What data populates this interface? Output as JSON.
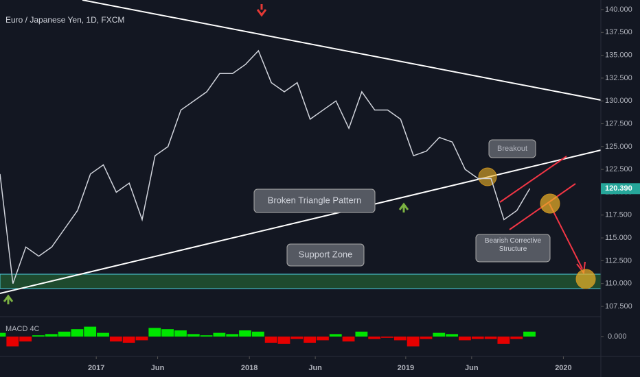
{
  "chart_data": {
    "type": "line",
    "title": "Euro / Japanese Yen, 1D, FXCM",
    "series": [
      {
        "name": "EURJPY",
        "color": "#d1d4dc",
        "values": [
          122,
          110,
          114,
          113,
          114,
          116,
          118,
          122,
          123,
          120,
          121,
          117,
          124,
          125,
          129,
          130,
          131,
          133,
          133,
          134,
          135.5,
          132,
          131,
          132,
          128,
          129,
          130,
          127,
          131,
          129,
          129,
          128,
          124,
          124.5,
          126,
          125.5,
          122.5,
          121.5,
          121.5,
          117,
          118,
          120.4
        ]
      }
    ],
    "xlim": [
      0,
      46.5
    ],
    "xticks": [
      {
        "value": 7.45,
        "label": "2017"
      },
      {
        "value": 12.2,
        "label": "Jun"
      },
      {
        "value": 19.3,
        "label": "2018"
      },
      {
        "value": 24.4,
        "label": "Jun"
      },
      {
        "value": 31.4,
        "label": "2019"
      },
      {
        "value": 36.5,
        "label": "Jun"
      },
      {
        "value": 43.6,
        "label": "2020"
      }
    ],
    "ylim": [
      107.5,
      140
    ],
    "yticks": [
      {
        "value": 107.5,
        "label": "107.500"
      },
      {
        "value": 110,
        "label": "110.000"
      },
      {
        "value": 112.5,
        "label": "112.500"
      },
      {
        "value": 115,
        "label": "115.000"
      },
      {
        "value": 117.5,
        "label": "117.500"
      },
      {
        "value": 120,
        "label": "120.000"
      },
      {
        "value": 122.5,
        "label": "122.500"
      },
      {
        "value": 125,
        "label": "125.000"
      },
      {
        "value": 127.5,
        "label": "127.500"
      },
      {
        "value": 130,
        "label": "130.000"
      },
      {
        "value": 132.5,
        "label": "132.500"
      },
      {
        "value": 135,
        "label": "135.000"
      },
      {
        "value": 137.5,
        "label": "137.500"
      },
      {
        "value": 140,
        "label": "140.000"
      }
    ],
    "last_price": {
      "value": 120.39,
      "label": "120.390",
      "color": "#26a69a"
    },
    "indicator": {
      "name": "MACD 4C",
      "values": [
        0.3,
        -0.8,
        -0.4,
        0.1,
        0.2,
        0.4,
        0.6,
        0.8,
        0.3,
        -0.4,
        -0.5,
        -0.3,
        0.7,
        0.6,
        0.5,
        0.2,
        0.1,
        0.3,
        0.2,
        0.5,
        0.4,
        -0.5,
        -0.6,
        -0.2,
        -0.5,
        -0.3,
        0.2,
        -0.4,
        0.4,
        -0.2,
        -0.1,
        -0.3,
        -0.8,
        -0.2,
        0.3,
        0.2,
        -0.3,
        -0.2,
        -0.2,
        -0.6,
        -0.2,
        0.4
      ],
      "ylim": [
        -1.5,
        1.5
      ],
      "yticks": [
        {
          "value": 0,
          "label": "0.000"
        }
      ],
      "up_color": "#00e600",
      "down_color": "#e60000"
    },
    "annotations": {
      "triangle": "Broken Triangle Pattern",
      "support": "Support Zone",
      "breakout": "Breakout",
      "corrective": "Bearish Corrective Structure"
    }
  }
}
